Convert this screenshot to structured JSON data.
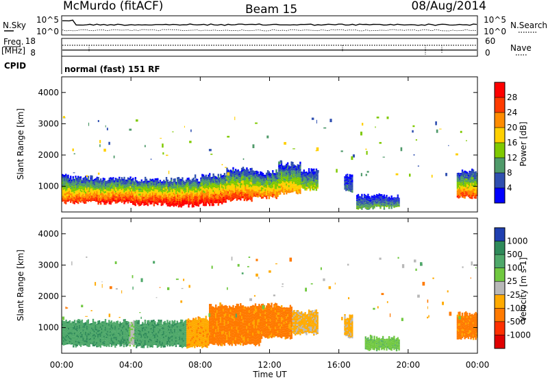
{
  "header": {
    "title": "McMurdo (fitACF)",
    "beam": "Beam 15",
    "date": "08/Aug/2014"
  },
  "status_panel": {
    "nsky_label": "N.Sky",
    "nsearch_label": "N.Search",
    "left_ticks": [
      "10^5",
      "10^0"
    ],
    "right_ticks": [
      "10^5",
      "10^0"
    ],
    "freq_label": "Freq.",
    "freq_unit": "[MHz]",
    "freq_ticks": [
      "18",
      "8"
    ],
    "nave_label": "Nave",
    "nave_ticks": [
      "60",
      "0"
    ],
    "cpid_label": "CPID",
    "cpid_value": "normal (fast) 151 RF"
  },
  "chart_data": [
    {
      "type": "heatmap",
      "name": "power",
      "ylabel": "Slant Range [km]",
      "xlabel": "",
      "ylim": [
        180,
        4500
      ],
      "yticks": [
        "4000",
        "3000",
        "2000",
        "1000"
      ],
      "xlim": [
        0,
        24
      ],
      "colorbar": {
        "label": "Power [dB]",
        "ticks": [
          "28",
          "24",
          "20",
          "16",
          "12",
          "8",
          "4"
        ],
        "colors": [
          "#ff0000",
          "#ff3b00",
          "#ff8c00",
          "#ffd000",
          "#7fc900",
          "#4f9a6a",
          "#2f4fb0",
          "#0000ff"
        ],
        "range": [
          0,
          32
        ]
      },
      "bands": [
        {
          "t": [
            0.0,
            0.4
          ],
          "range": [
            480,
            1320
          ],
          "peak": 26
        },
        {
          "t": [
            0.4,
            2.0
          ],
          "range": [
            480,
            1280
          ],
          "peak": 27
        },
        {
          "t": [
            2.0,
            4.0
          ],
          "range": [
            460,
            1250
          ],
          "peak": 29
        },
        {
          "t": [
            4.0,
            6.0
          ],
          "range": [
            420,
            1230
          ],
          "peak": 30
        },
        {
          "t": [
            6.0,
            8.0
          ],
          "range": [
            380,
            1220
          ],
          "peak": 31
        },
        {
          "t": [
            8.0,
            9.5
          ],
          "range": [
            420,
            1350
          ],
          "peak": 30
        },
        {
          "t": [
            9.5,
            11.0
          ],
          "range": [
            560,
            1550
          ],
          "peak": 27
        },
        {
          "t": [
            11.0,
            12.5
          ],
          "range": [
            640,
            1450
          ],
          "peak": 24
        },
        {
          "t": [
            12.5,
            13.8
          ],
          "range": [
            780,
            1720
          ],
          "peak": 22
        },
        {
          "t": [
            13.8,
            14.8
          ],
          "range": [
            900,
            1500
          ],
          "peak": 16
        },
        {
          "t": [
            16.3,
            16.8
          ],
          "range": [
            850,
            1350
          ],
          "peak": 8
        },
        {
          "t": [
            17.0,
            19.5
          ],
          "range": [
            300,
            700
          ],
          "peak": 12
        },
        {
          "t": [
            22.8,
            24.0
          ],
          "range": [
            650,
            1500
          ],
          "peak": 26
        }
      ]
    },
    {
      "type": "heatmap",
      "name": "velocity",
      "ylabel": "Slant Range [km]",
      "xlabel": "Time UT",
      "ylim": [
        180,
        4500
      ],
      "yticks": [
        "4000",
        "3000",
        "2000",
        "1000"
      ],
      "xticks": [
        "00:00",
        "04:00",
        "08:00",
        "12:00",
        "16:00",
        "20:00",
        "00:00"
      ],
      "xlim": [
        0,
        24
      ],
      "colorbar": {
        "label": "Velocity [m s-1]",
        "ticks": [
          "1000",
          "500",
          "100",
          "25",
          "-25",
          "-100",
          "-500",
          "-1000"
        ],
        "colors": [
          "#1f3fb0",
          "#2f8a5a",
          "#4fa86a",
          "#70c840",
          "#b8b8b8",
          "#ffaa00",
          "#ff7a00",
          "#ff3000",
          "#e00000"
        ],
        "range": [
          -1200,
          1200
        ]
      },
      "bands": [
        {
          "t": [
            0.0,
            3.9
          ],
          "range": [
            420,
            1200
          ],
          "value": 600
        },
        {
          "t": [
            3.9,
            4.2
          ],
          "range": [
            420,
            1200
          ],
          "value": 80
        },
        {
          "t": [
            4.2,
            7.2
          ],
          "range": [
            400,
            1180
          ],
          "value": 600
        },
        {
          "t": [
            7.2,
            8.5
          ],
          "range": [
            380,
            1300
          ],
          "value": -300
        },
        {
          "t": [
            8.5,
            11.5
          ],
          "range": [
            460,
            1700
          ],
          "value": -500
        },
        {
          "t": [
            11.5,
            13.3
          ],
          "range": [
            680,
            1720
          ],
          "value": -500
        },
        {
          "t": [
            13.3,
            14.8
          ],
          "range": [
            800,
            1500
          ],
          "value": -200
        },
        {
          "t": [
            16.3,
            16.8
          ],
          "range": [
            700,
            1350
          ],
          "value": -200
        },
        {
          "t": [
            17.5,
            19.5
          ],
          "range": [
            300,
            700
          ],
          "value": 300
        },
        {
          "t": [
            22.8,
            24.0
          ],
          "range": [
            650,
            1450
          ],
          "value": -500
        }
      ]
    }
  ]
}
